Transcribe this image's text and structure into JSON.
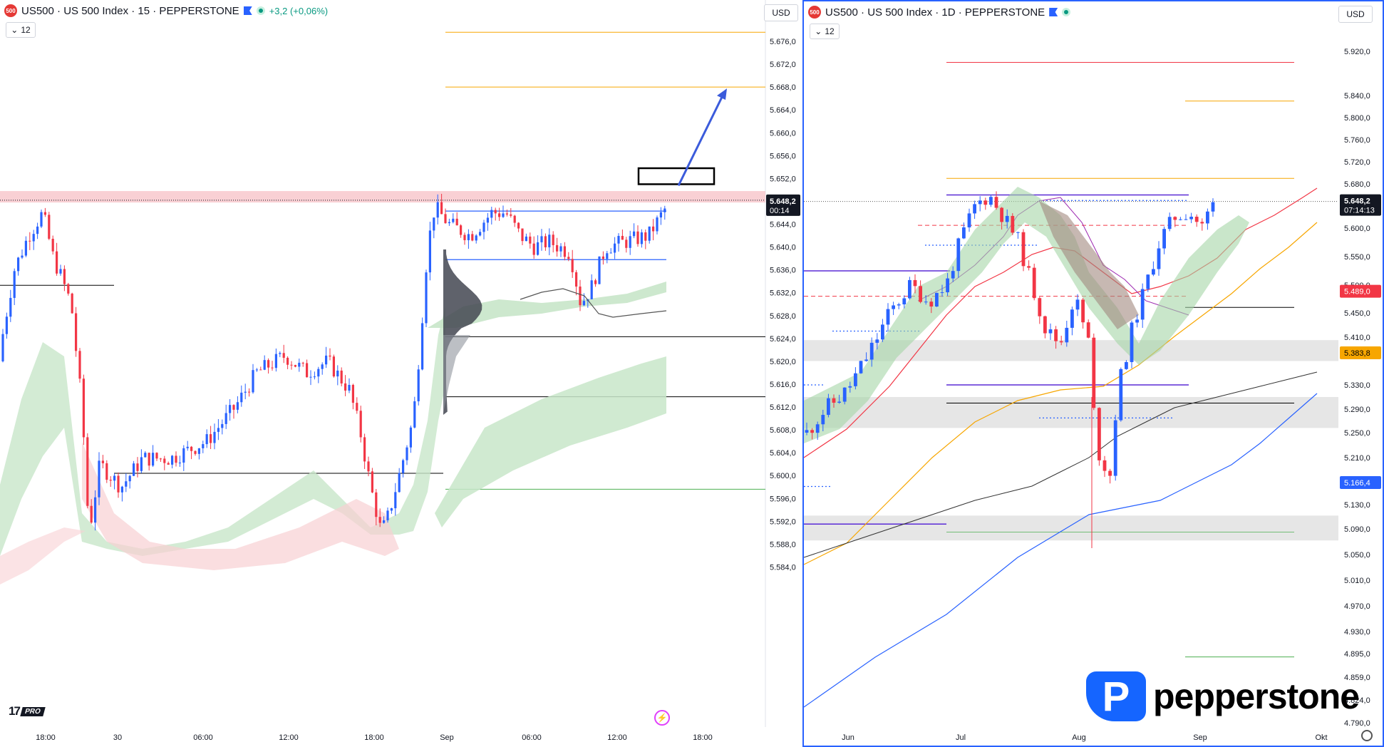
{
  "left_chart": {
    "symbol_badge": "500",
    "title": "US500 · US 500 Index · 15 · PEPPERSTONE",
    "change": "+3,2 (+0,06%)",
    "interval_selector": "12",
    "currency": "USD",
    "price_label": "5.648,2",
    "countdown": "00:14",
    "y_ticks": [
      "5.676,0",
      "5.672,0",
      "5.668,0",
      "5.664,0",
      "5.660,0",
      "5.656,0",
      "5.652,0",
      "5.648,0",
      "5.644,0",
      "5.640,0",
      "5.636,0",
      "5.632,0",
      "5.628,0",
      "5.624,0",
      "5.620,0",
      "5.616,0",
      "5.612,0",
      "5.608,0",
      "5.604,0",
      "5.600,0",
      "5.596,0",
      "5.592,0",
      "5.588,0",
      "5.584,0"
    ],
    "x_ticks": [
      "18:00",
      "30",
      "06:00",
      "12:00",
      "18:00",
      "Sep",
      "06:00",
      "12:00",
      "18:00"
    ],
    "logo_text": "17",
    "logo_badge": "PRO",
    "colors": {
      "up": "#2962ff",
      "down": "#f23645",
      "resistance_zone": "#f8c8cc",
      "target_line": "#f7a600",
      "support_line": "#4caf50",
      "arrow": "#3b5bdb"
    }
  },
  "right_chart": {
    "symbol_badge": "500",
    "title": "US500 · US 500 Index · 1D · PEPPERSTONE",
    "interval_selector": "12",
    "currency": "USD",
    "price_label": "5.648,2",
    "countdown": "07:14:13",
    "ma_labels": [
      {
        "value": "5.489,0",
        "color": "#f23645"
      },
      {
        "value": "5.383,8",
        "color": "#f7a600"
      },
      {
        "value": "5.166,4",
        "color": "#2962ff"
      }
    ],
    "y_ticks": [
      "5.920,0",
      "5.840,0",
      "5.800,0",
      "5.760,0",
      "5.720,0",
      "5.680,0",
      "5.600,0",
      "5.550,0",
      "5.500,0",
      "5.450,0",
      "5.410,0",
      "5.330,0",
      "5.290,0",
      "5.250,0",
      "5.210,0",
      "5.170,0",
      "5.130,0",
      "5.090,0",
      "5.050,0",
      "5.010,0",
      "4.970,0",
      "4.930,0",
      "4.895,0",
      "4.859,0",
      "4.824,0",
      "4.790,0"
    ],
    "x_ticks": [
      "Jun",
      "Jul",
      "Aug",
      "Sep",
      "Okt"
    ],
    "brand": "pepperstone",
    "brand_glyph": "P"
  },
  "chart_data": [
    {
      "type": "candlestick",
      "title": "US500 · US 500 Index · 15 · PEPPERSTONE",
      "ylim": [
        5582,
        5680
      ],
      "last_price": 5648.2,
      "resistance_zone": [
        5647.8,
        5649.8
      ],
      "levels": {
        "target_upper": 5677.6,
        "target": 5668.0,
        "box_top": 5653.8,
        "box_bottom": 5651.0,
        "range_high": 5646.3,
        "range_low": 5637.8,
        "mid_low": 5624.3,
        "low_level": 5613.8,
        "support_green": 5597.6,
        "left_black": 5633.3,
        "left_bottom": 5600.4
      },
      "x_labels": [
        "18:00",
        "30",
        "06:00",
        "12:00",
        "18:00",
        "Sep",
        "06:00",
        "12:00",
        "18:00"
      ]
    },
    {
      "type": "candlestick",
      "title": "US500 · US 500 Index · 1D · PEPPERSTONE",
      "last_price": 5648.2,
      "moving_averages": [
        5489.0,
        5383.8,
        5166.4
      ],
      "x_labels": [
        "Jun",
        "Jul",
        "Aug",
        "Sep",
        "Okt"
      ]
    }
  ]
}
